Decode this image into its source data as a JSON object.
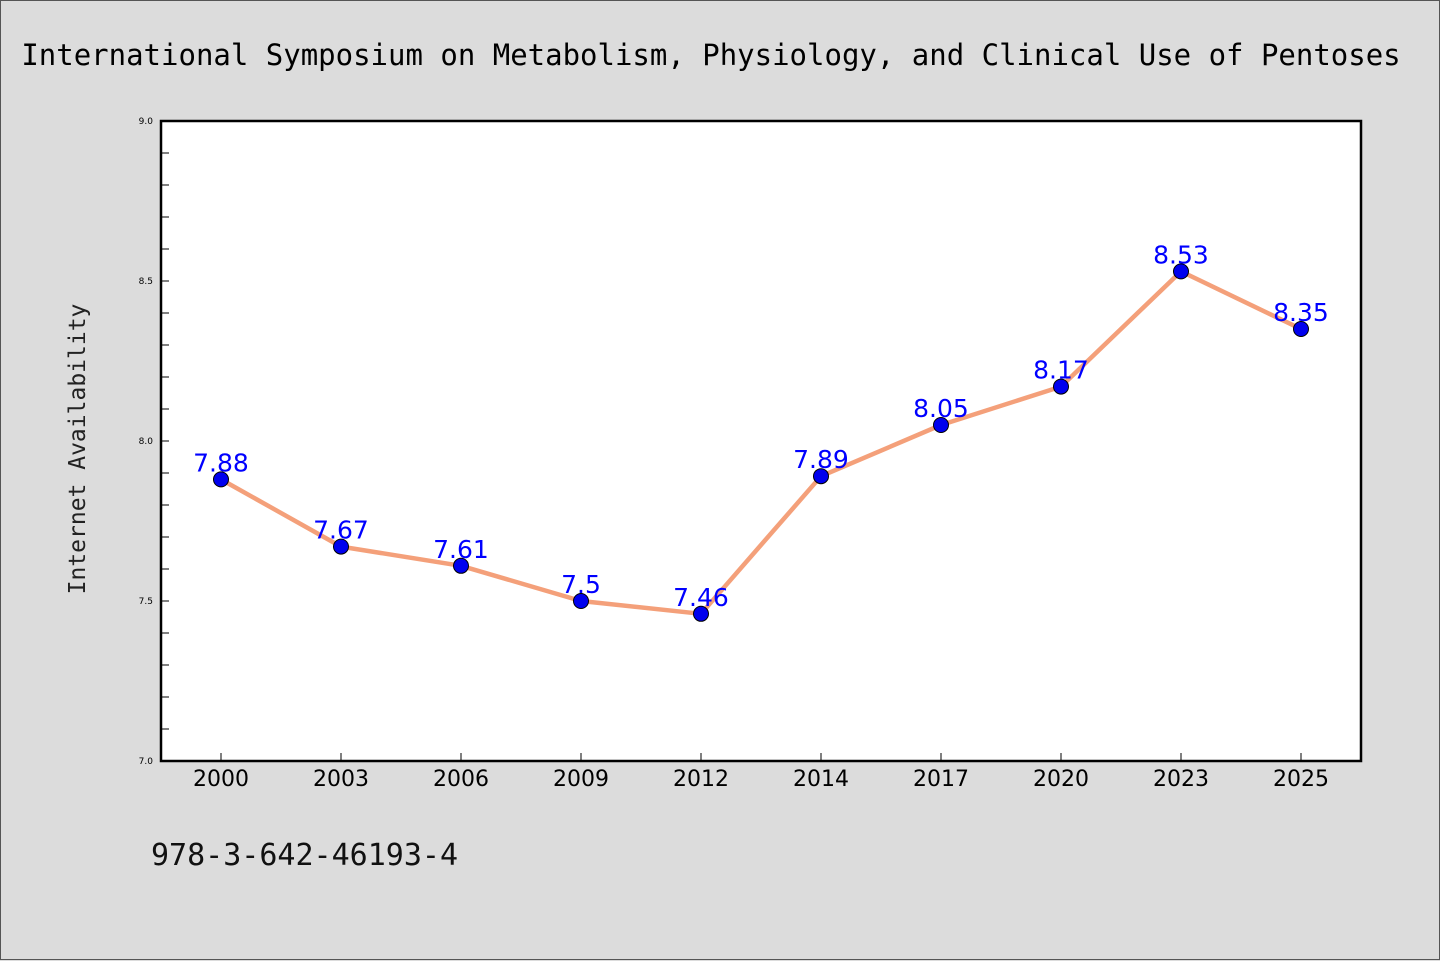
{
  "chart_data": {
    "type": "line",
    "title": "International Symposium on Metabolism, Physiology, and Clinical Use of Pentoses",
    "xlabel": "",
    "ylabel": "Internet Availability",
    "categories": [
      "2000",
      "2003",
      "2006",
      "2009",
      "2012",
      "2014",
      "2017",
      "2020",
      "2023",
      "2025"
    ],
    "series": [
      {
        "values": [
          7.88,
          7.67,
          7.61,
          7.5,
          7.46,
          7.89,
          8.05,
          8.17,
          8.53,
          8.35
        ],
        "line_color": "#f4a07a",
        "marker_color": "#0000ee"
      }
    ],
    "data_labels": [
      "7.88",
      "7.67",
      "7.61",
      "7.5",
      "7.46",
      "7.89",
      "8.05",
      "8.17",
      "8.53",
      "8.35"
    ],
    "ylim": [
      7.0,
      9.0
    ],
    "yticks": [
      "7.0",
      "7.5",
      "8.0",
      "8.5",
      "9.0"
    ],
    "ytick_values": [
      7.0,
      7.5,
      8.0,
      8.5,
      9.0
    ],
    "minor_ytick_step": 0.1,
    "grid": false,
    "legend": "none",
    "label_color": "#0000ff"
  },
  "footer": {
    "isbn": "978-3-642-46193-4"
  }
}
